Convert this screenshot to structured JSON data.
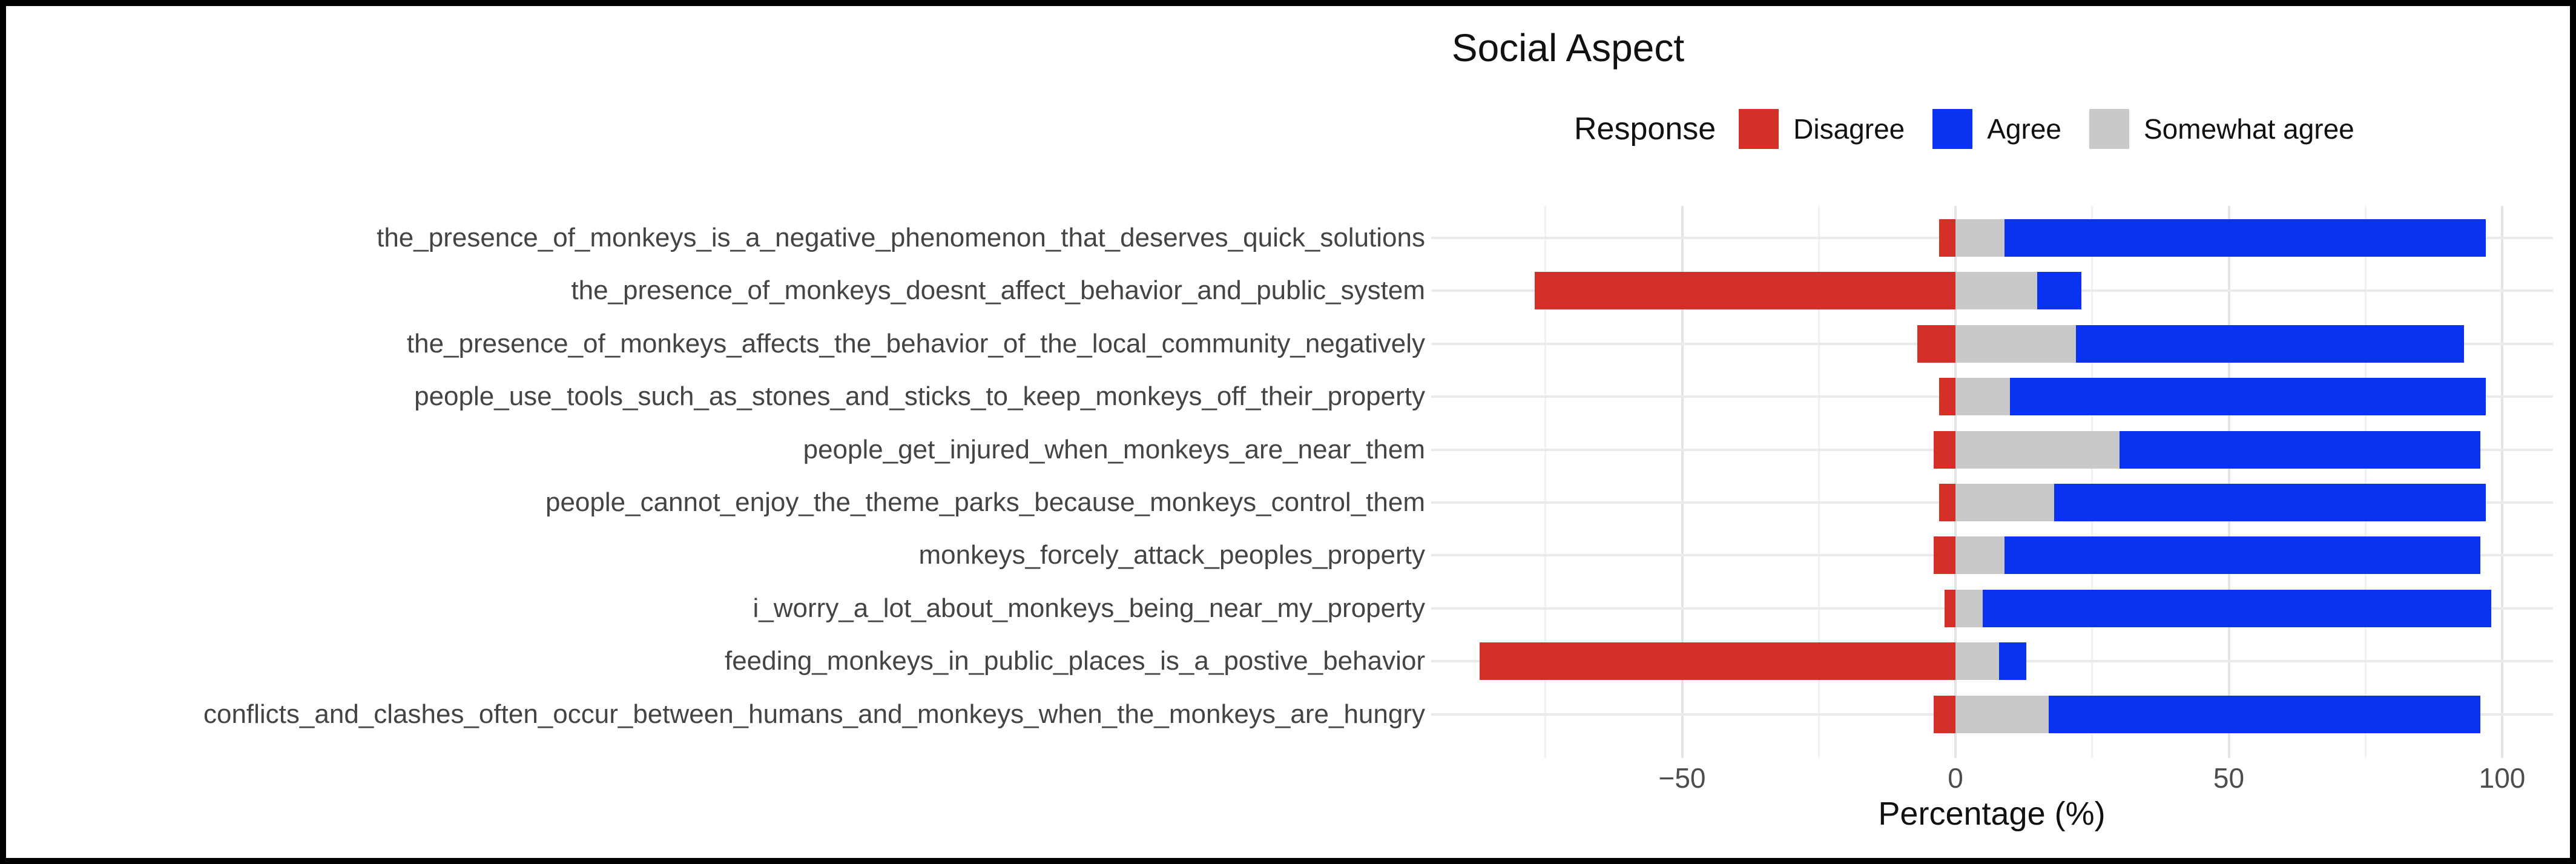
{
  "chart_data": {
    "type": "bar",
    "variant": "diverging_stacked_horizontal",
    "title": "Social Aspect",
    "xlabel": "Percentage (%)",
    "legend_title": "Response",
    "legend_position": "top-right",
    "grid": "on",
    "xlim": [
      -96,
      110
    ],
    "x_ticks": [
      {
        "value": -50,
        "label": "−50"
      },
      {
        "value": 0,
        "label": "0"
      },
      {
        "value": 50,
        "label": "50"
      },
      {
        "value": 100,
        "label": "100"
      }
    ],
    "x_minor_gridlines": [
      -75,
      -25,
      25,
      75
    ],
    "categories": [
      "the_presence_of_monkeys_is_a_negative_phenomenon_that_deserves_quick_solutions",
      "the_presence_of_monkeys_doesnt_affect_behavior_and_public_system",
      "the_presence_of_monkeys_affects_the_behavior_of_the_local_community_negatively",
      "people_use_tools_such_as_stones_and_sticks_to_keep_monkeys_off_their_property",
      "people_get_injured_when_monkeys_are_near_them",
      "people_cannot_enjoy_the_theme_parks_because_monkeys_control_them",
      "monkeys_forcely_attack_peoples_property",
      "i_worry_a_lot_about_monkeys_being_near_my_property",
      "feeding_monkeys_in_public_places_is_a_postive_behavior",
      "conflicts_and_clashes_often_occur_between_humans_and_monkeys_when_the_monkeys_are_hungry"
    ],
    "series": [
      {
        "name": "Disagree",
        "color": "#D33028",
        "direction": "negative",
        "values": [
          3,
          77,
          7,
          3,
          4,
          3,
          4,
          2,
          87,
          4
        ]
      },
      {
        "name": "Somewhat agree",
        "color": "#C9C9C9",
        "direction": "positive",
        "values": [
          9,
          15,
          22,
          10,
          30,
          18,
          9,
          5,
          8,
          17
        ]
      },
      {
        "name": "Agree",
        "color": "#0B32F0",
        "direction": "positive",
        "values": [
          88,
          8,
          71,
          87,
          66,
          79,
          87,
          93,
          5,
          79
        ]
      }
    ],
    "legend_entries": [
      {
        "label": "Disagree",
        "color": "#D33028"
      },
      {
        "label": "Agree",
        "color": "#0B32F0"
      },
      {
        "label": "Somewhat agree",
        "color": "#C9C9C9"
      }
    ]
  }
}
